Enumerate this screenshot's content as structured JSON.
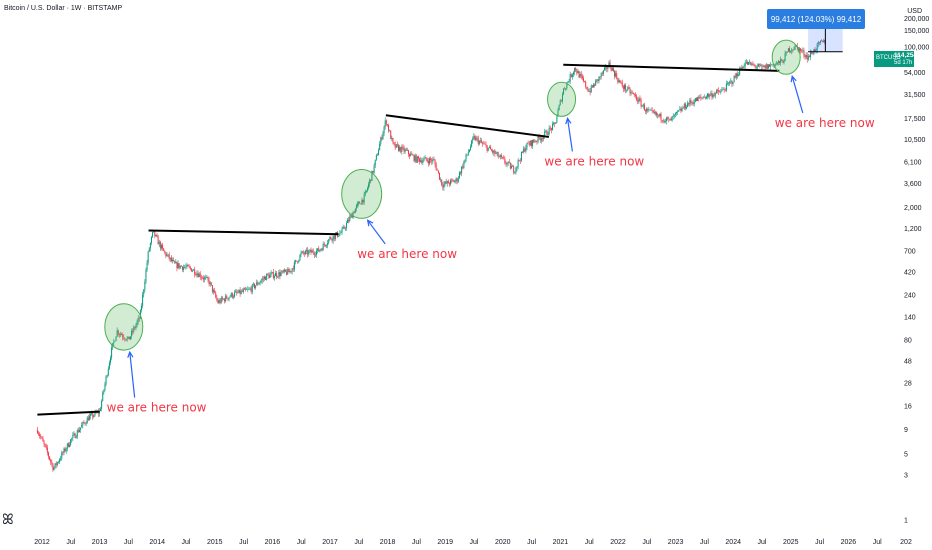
{
  "header": {
    "title": "Bitcoin / U.S. Dollar · 1W · BITSTAMP",
    "currency": "USD"
  },
  "measure": {
    "label": "99,412 (124.03%) 99,412"
  },
  "price_tag": {
    "symbol": "BTCUSD",
    "value": "114,254",
    "countdown": "5d 17h"
  },
  "logo": {
    "text": "ꕤ",
    "icon": "tradingview-logo-icon"
  },
  "colors": {
    "up": "#089981",
    "down": "#f23645",
    "annotation_text": "#f23645",
    "arrow": "#2962ff",
    "circle": "#4caf50",
    "measure": "#2a7de1"
  },
  "chart_data": {
    "type": "candlestick",
    "scale": "log",
    "interval": "1W",
    "y_ticks": [
      "200,000",
      "150,000",
      "100,000",
      "54,000",
      "31,500",
      "17,500",
      "10,500",
      "6,100",
      "3,600",
      "2,000",
      "1,200",
      "700",
      "420",
      "240",
      "140",
      "80",
      "48",
      "28",
      "16",
      "9",
      "5",
      "3",
      "1"
    ],
    "x_ticks": [
      "2012",
      "Jul",
      "2013",
      "Jul",
      "2014",
      "Jul",
      "2015",
      "Jul",
      "2016",
      "Jul",
      "2017",
      "Jul",
      "2018",
      "Jul",
      "2019",
      "Jul",
      "2020",
      "Jul",
      "2021",
      "Jul",
      "2022",
      "Jul",
      "2023",
      "Jul",
      "2024",
      "Jul",
      "2025",
      "Jul",
      "2026",
      "Jul",
      "202"
    ],
    "price_path": [
      [
        2011.92,
        9
      ],
      [
        2012.1,
        5
      ],
      [
        2012.2,
        3.5
      ],
      [
        2012.5,
        7
      ],
      [
        2012.8,
        12
      ],
      [
        2013.0,
        14
      ],
      [
        2013.2,
        60
      ],
      [
        2013.3,
        100
      ],
      [
        2013.4,
        90
      ],
      [
        2013.5,
        80
      ],
      [
        2013.7,
        140
      ],
      [
        2013.85,
        700
      ],
      [
        2013.93,
        1100
      ],
      [
        2014.1,
        700
      ],
      [
        2014.3,
        500
      ],
      [
        2014.6,
        450
      ],
      [
        2014.9,
        330
      ],
      [
        2015.05,
        200
      ],
      [
        2015.3,
        240
      ],
      [
        2015.6,
        270
      ],
      [
        2015.9,
        380
      ],
      [
        2016.3,
        420
      ],
      [
        2016.5,
        650
      ],
      [
        2016.8,
        700
      ],
      [
        2017.0,
        950
      ],
      [
        2017.2,
        1100
      ],
      [
        2017.45,
        2000
      ],
      [
        2017.6,
        2600
      ],
      [
        2017.75,
        5000
      ],
      [
        2017.97,
        17000
      ],
      [
        2018.1,
        9000
      ],
      [
        2018.3,
        8000
      ],
      [
        2018.5,
        6500
      ],
      [
        2018.8,
        6300
      ],
      [
        2018.95,
        3500
      ],
      [
        2019.2,
        3900
      ],
      [
        2019.5,
        11000
      ],
      [
        2019.9,
        7200
      ],
      [
        2020.2,
        5000
      ],
      [
        2020.4,
        9000
      ],
      [
        2020.7,
        11500
      ],
      [
        2020.9,
        15000
      ],
      [
        2021.05,
        35000
      ],
      [
        2021.25,
        60000
      ],
      [
        2021.5,
        34000
      ],
      [
        2021.85,
        66000
      ],
      [
        2022.05,
        40000
      ],
      [
        2022.3,
        30000
      ],
      [
        2022.5,
        21000
      ],
      [
        2022.9,
        16500
      ],
      [
        2023.2,
        25000
      ],
      [
        2023.5,
        30000
      ],
      [
        2023.8,
        34000
      ],
      [
        2024.0,
        45000
      ],
      [
        2024.2,
        68000
      ],
      [
        2024.5,
        60000
      ],
      [
        2024.85,
        70000
      ],
      [
        2024.97,
        95000
      ],
      [
        2025.1,
        100000
      ],
      [
        2025.3,
        78000
      ],
      [
        2025.5,
        108000
      ],
      [
        2025.6,
        114254
      ]
    ],
    "resistance_lines": [
      {
        "from": [
          2011.92,
          13
        ],
        "to": [
          2013.0,
          14
        ]
      },
      {
        "from": [
          2013.85,
          1150
        ],
        "to": [
          2017.15,
          1050
        ]
      },
      {
        "from": [
          2017.97,
          19000
        ],
        "to": [
          2020.8,
          11200
        ]
      },
      {
        "from": [
          2021.05,
          65000
        ],
        "to": [
          2024.8,
          56000
        ]
      }
    ],
    "circles": [
      [
        2013.42,
        110
      ],
      [
        2017.55,
        2800
      ],
      [
        2021.02,
        28000
      ],
      [
        2024.92,
        78000
      ]
    ],
    "annotations": [
      {
        "text": "we are here now",
        "at": [
          2013.4,
          14
        ]
      },
      {
        "text": "we are here now",
        "at": [
          2017.75,
          590
        ]
      },
      {
        "text": "we are here now",
        "at": [
          2021.0,
          5600
        ]
      },
      {
        "text": "we are here now",
        "at": [
          2025.0,
          14300
        ]
      }
    ],
    "measure_range": {
      "from": 89000,
      "to": 188000
    }
  }
}
